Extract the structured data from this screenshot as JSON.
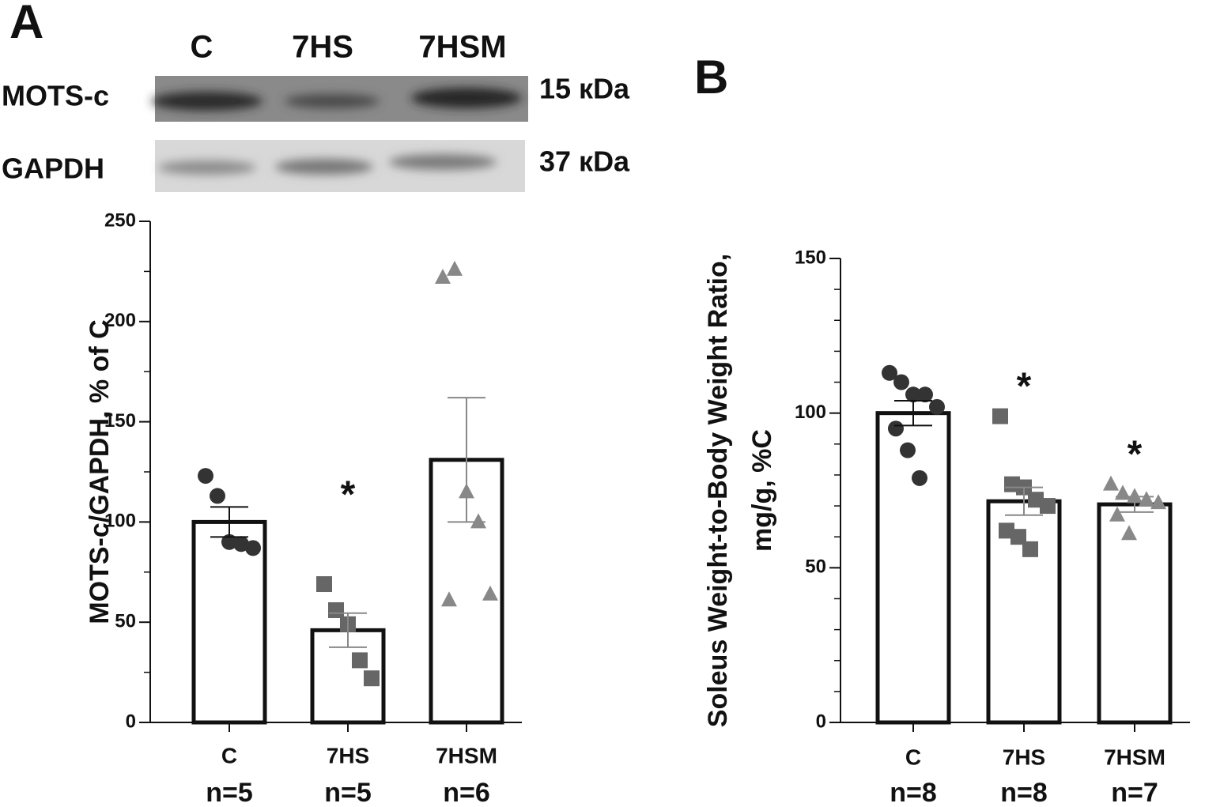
{
  "chart_data": [
    {
      "type": "bar",
      "panel": "A",
      "blot": {
        "lanes": [
          "C",
          "7HS",
          "7HSM"
        ],
        "rows": [
          {
            "label": "MOTS-c",
            "size": "15 кDa"
          },
          {
            "label": "GAPDH",
            "size": "37 кDa"
          }
        ]
      },
      "ylabel": [
        "MOTS-c/GAPDH, % of C"
      ],
      "categories": [
        "C",
        "7HS",
        "7HSM"
      ],
      "n_labels": [
        "n=5",
        "n=5",
        "n=6"
      ],
      "values": [
        100,
        46,
        131
      ],
      "errors": [
        7.5,
        8.5,
        31
      ],
      "points": [
        [
          123,
          113,
          90,
          89,
          87
        ],
        [
          69,
          56,
          49,
          31,
          22
        ],
        [
          222,
          226,
          115,
          100,
          64,
          61
        ]
      ],
      "point_markers": [
        "circle",
        "square",
        "triangle"
      ],
      "point_colors": [
        "#333333",
        "#666666",
        "#888888"
      ],
      "significance": [
        null,
        "*",
        null
      ],
      "ylim": [
        0,
        250
      ],
      "yticks": [
        0,
        50,
        100,
        150,
        200,
        250
      ],
      "minor_tick_step": 25
    },
    {
      "type": "bar",
      "panel": "B",
      "ylabel": [
        "Soleus Weight-to-Body Weight Ratio,",
        "mg/g, %C"
      ],
      "categories": [
        "C",
        "7HS",
        "7HSM"
      ],
      "n_labels": [
        "n=8",
        "n=8",
        "n=7"
      ],
      "values": [
        100,
        71.5,
        70.5
      ],
      "errors": [
        4,
        4.5,
        2.5
      ],
      "points": [
        [
          113,
          110,
          106,
          106,
          102,
          95,
          88,
          79
        ],
        [
          99,
          77,
          76,
          72,
          70,
          62,
          60,
          56
        ],
        [
          77,
          74,
          73,
          72,
          71,
          67,
          61
        ]
      ],
      "point_markers": [
        "circle",
        "square",
        "triangle"
      ],
      "point_colors": [
        "#333333",
        "#666666",
        "#888888"
      ],
      "significance": [
        null,
        "*",
        "*"
      ],
      "ylim": [
        0,
        150
      ],
      "yticks": [
        0,
        50,
        100,
        150
      ],
      "minor_tick_step": 10
    }
  ]
}
